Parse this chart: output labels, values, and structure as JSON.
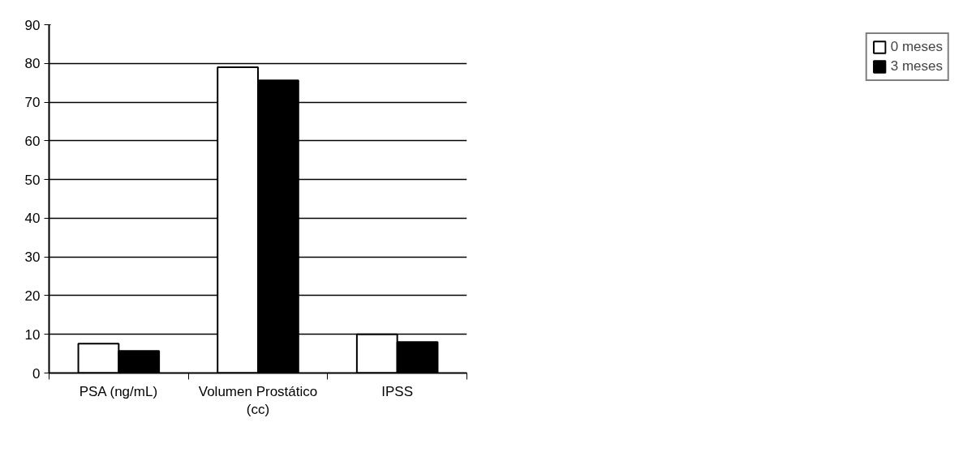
{
  "chart_data": {
    "type": "bar",
    "categories": [
      "PSA (ng/mL)",
      "Volumen Prostático (cc)",
      "IPSS"
    ],
    "series": [
      {
        "name": "0 meses",
        "color": "#ffffff",
        "values": [
          7.6,
          79,
          10
        ]
      },
      {
        "name": "3 meses",
        "color": "#000000",
        "values": [
          5.7,
          75.6,
          8
        ]
      }
    ],
    "ylim": [
      0,
      90
    ],
    "yticks": [
      0,
      10,
      20,
      30,
      40,
      50,
      60,
      70,
      80,
      90
    ],
    "grid": "y",
    "legend": "right"
  }
}
